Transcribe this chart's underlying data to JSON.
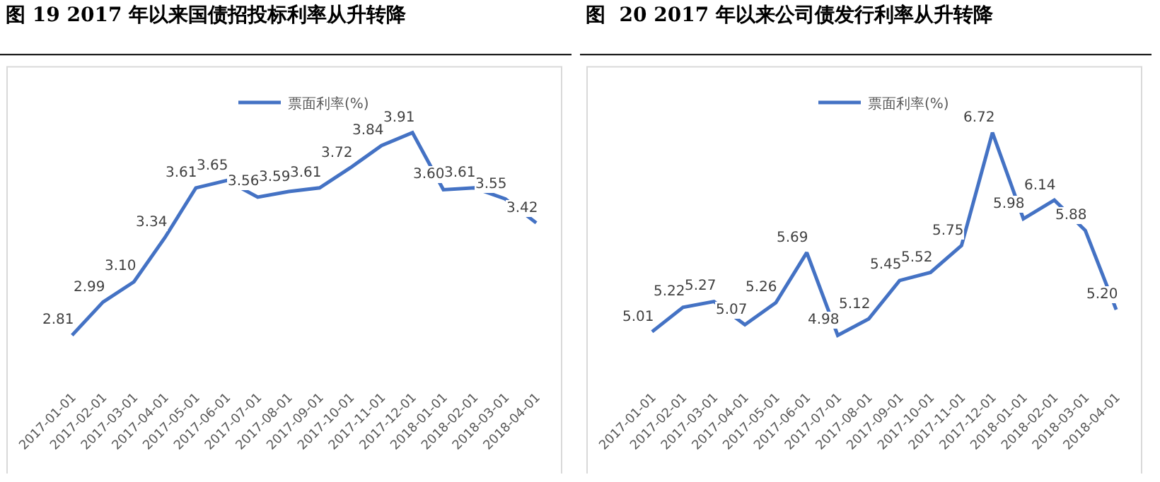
{
  "chart_data": [
    {
      "type": "line",
      "title": "图 19 2017 年以来国债招投标利率从升转降",
      "categories": [
        "2017-01-01",
        "2017-02-01",
        "2017-03-01",
        "2017-04-01",
        "2017-05-01",
        "2017-06-01",
        "2017-07-01",
        "2017-08-01",
        "2017-09-01",
        "2017-10-01",
        "2017-11-01",
        "2017-12-01",
        "2018-01-01",
        "2018-02-01",
        "2018-03-01",
        "2018-04-01"
      ],
      "series": [
        {
          "name": "票面利率(%)",
          "color": "#4472c4",
          "values": [
            2.81,
            2.99,
            3.1,
            3.34,
            3.61,
            3.65,
            3.56,
            3.59,
            3.61,
            3.72,
            3.84,
            3.91,
            3.6,
            3.61,
            3.55,
            3.42
          ],
          "value_labels": [
            "2.81",
            "2.99",
            "3.10",
            "3.34",
            "3.61",
            "3.65",
            "3.56",
            "3.59",
            "3.61",
            "3.72",
            "3.84",
            "3.91",
            "3.60",
            "3.61",
            "3.55",
            "3.42"
          ]
        }
      ],
      "legend": "top",
      "marker": "none",
      "line_style": "solid",
      "tick_labels": "x"
    },
    {
      "type": "line",
      "title": "图  20 2017 年以来公司债发行利率从升转降",
      "categories": [
        "2017-01-01",
        "2017-02-01",
        "2017-03-01",
        "2017-04-01",
        "2017-05-01",
        "2017-06-01",
        "2017-07-01",
        "2017-08-01",
        "2017-09-01",
        "2017-10-01",
        "2017-11-01",
        "2017-12-01",
        "2018-01-01",
        "2018-02-01",
        "2018-03-01",
        "2018-04-01"
      ],
      "series": [
        {
          "name": "票面利率(%)",
          "color": "#4472c4",
          "values": [
            5.01,
            5.22,
            5.27,
            5.07,
            5.26,
            5.69,
            4.98,
            5.12,
            5.45,
            5.52,
            5.75,
            6.72,
            5.98,
            6.14,
            5.88,
            5.2
          ],
          "value_labels": [
            "5.01",
            "5.22",
            "5.27",
            "5.07",
            "5.26",
            "5.69",
            "4.98",
            "5.12",
            "5.45",
            "5.52",
            "5.75",
            "6.72",
            "5.98",
            "6.14",
            "5.88",
            "5.20"
          ]
        }
      ],
      "legend": "top",
      "marker": "none",
      "line_style": "solid",
      "tick_labels": "x"
    }
  ]
}
